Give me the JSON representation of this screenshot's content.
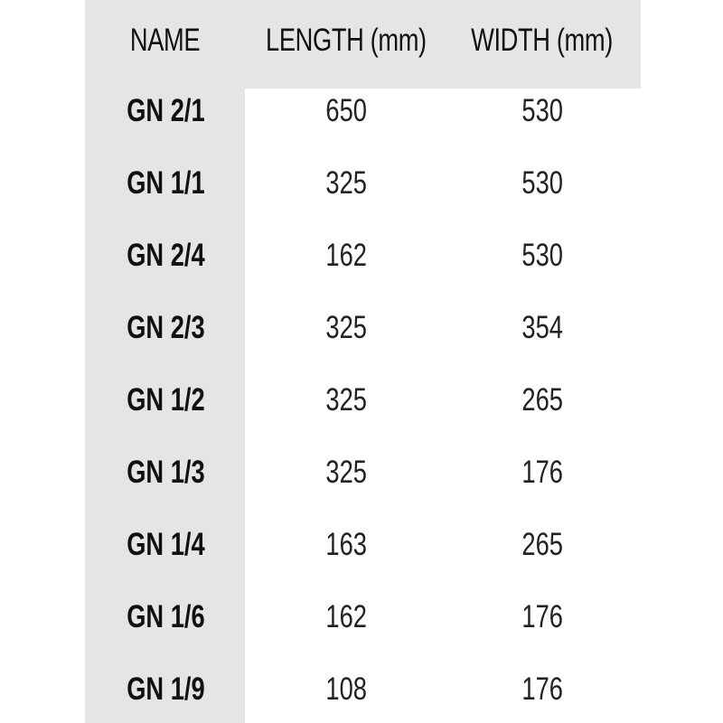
{
  "table": {
    "headers": [
      "NAME",
      "LENGTH (mm)",
      "WIDTH (mm)"
    ],
    "rows": [
      [
        "GN 2/1",
        "650",
        "530"
      ],
      [
        "GN 1/1",
        "325",
        "530"
      ],
      [
        "GN 2/4",
        "162",
        "530"
      ],
      [
        "GN 2/3",
        "325",
        "354"
      ],
      [
        "GN 1/2",
        "325",
        "265"
      ],
      [
        "GN 1/3",
        "325",
        "176"
      ],
      [
        "GN 1/4",
        "163",
        "265"
      ],
      [
        "GN 1/6",
        "162",
        "176"
      ],
      [
        "GN 1/9",
        "108",
        "176"
      ]
    ]
  },
  "colors": {
    "header_background": "#e6e5e4",
    "text": "#111111"
  }
}
